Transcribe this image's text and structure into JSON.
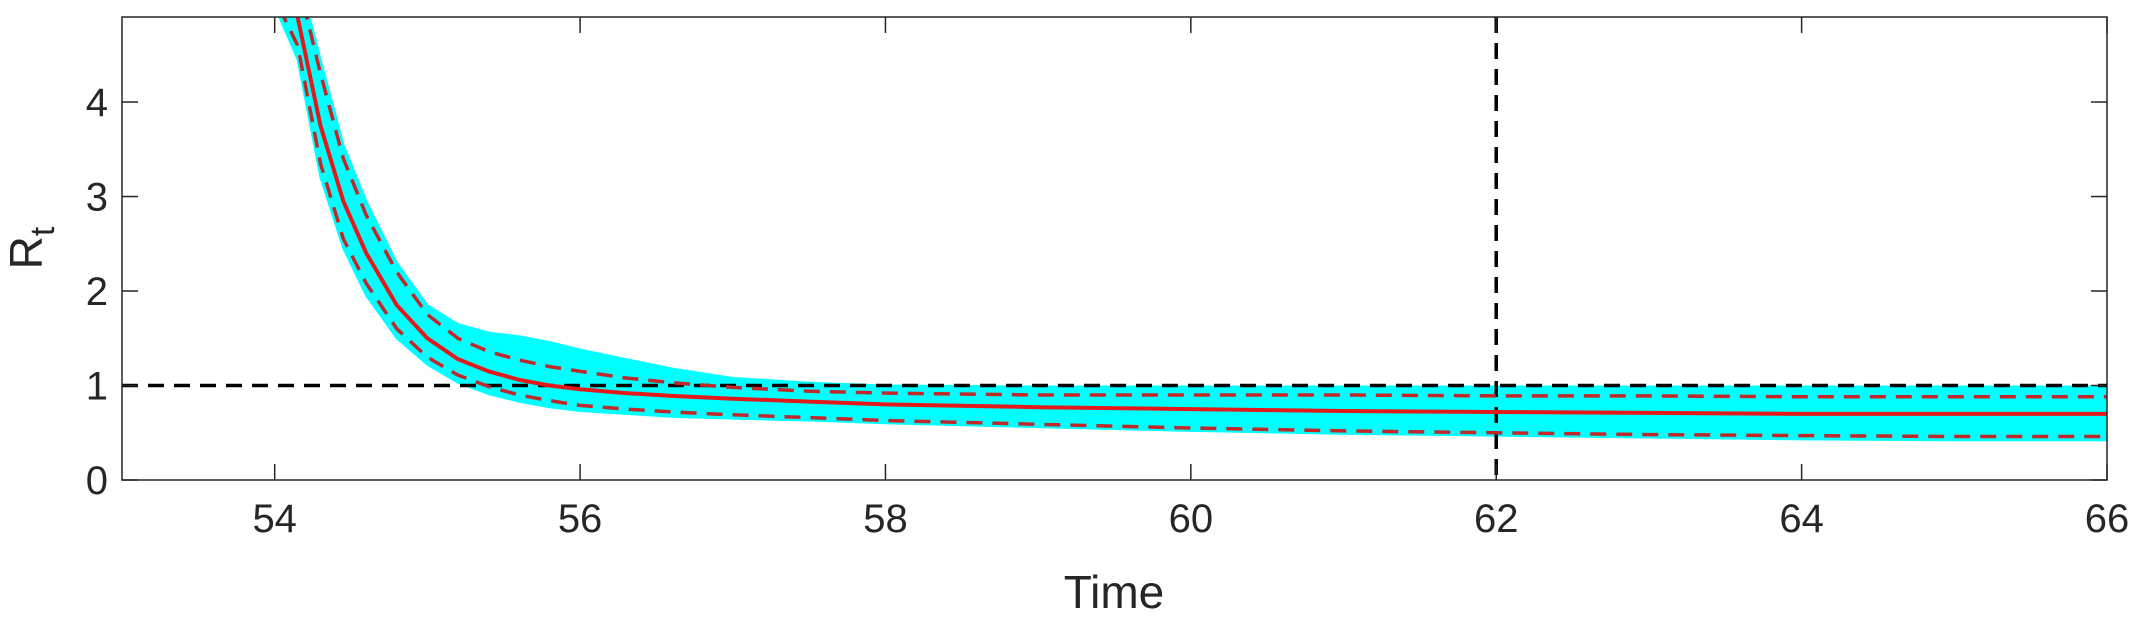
{
  "chart_data": {
    "type": "line",
    "xlabel": "Time",
    "ylabel": "R",
    "ylabel_subscript": "t",
    "xlim": [
      53,
      66
    ],
    "ylim": [
      0,
      4.9
    ],
    "xticks": [
      54,
      56,
      58,
      60,
      62,
      64,
      66
    ],
    "yticks": [
      0,
      1,
      2,
      3,
      4
    ],
    "grid": false,
    "colors": {
      "band": "#00ffff",
      "median": "#e31a1c",
      "bounds": "#c0282a",
      "reference": "#000000"
    },
    "reference_lines": {
      "y": 1,
      "x": 62
    },
    "x": [
      54.03,
      54.15,
      54.3,
      54.45,
      54.6,
      54.8,
      55.0,
      55.2,
      55.4,
      55.6,
      55.8,
      56.0,
      56.3,
      56.6,
      57.0,
      57.5,
      58.0,
      59.0,
      60.0,
      61.0,
      62.0,
      63.0,
      64.0,
      65.0,
      66.0
    ],
    "series": [
      {
        "role": "median",
        "values": [
          5.2,
          4.9,
          3.75,
          2.95,
          2.4,
          1.85,
          1.5,
          1.28,
          1.15,
          1.06,
          1.0,
          0.96,
          0.92,
          0.89,
          0.86,
          0.83,
          0.8,
          0.77,
          0.75,
          0.73,
          0.72,
          0.71,
          0.7,
          0.7,
          0.7
        ]
      },
      {
        "role": "upper-bound",
        "values": [
          5.5,
          5.3,
          4.3,
          3.4,
          2.8,
          2.2,
          1.75,
          1.5,
          1.36,
          1.27,
          1.2,
          1.15,
          1.08,
          1.03,
          0.98,
          0.94,
          0.92,
          0.9,
          0.9,
          0.9,
          0.89,
          0.89,
          0.88,
          0.88,
          0.88
        ]
      },
      {
        "role": "lower-bound",
        "values": [
          5.0,
          4.6,
          3.35,
          2.55,
          2.08,
          1.6,
          1.3,
          1.11,
          0.99,
          0.9,
          0.84,
          0.79,
          0.75,
          0.72,
          0.69,
          0.66,
          0.63,
          0.59,
          0.55,
          0.52,
          0.5,
          0.48,
          0.47,
          0.46,
          0.46
        ]
      },
      {
        "role": "band-upper",
        "values": [
          5.6,
          5.4,
          4.45,
          3.55,
          2.95,
          2.3,
          1.85,
          1.65,
          1.56,
          1.52,
          1.46,
          1.38,
          1.28,
          1.18,
          1.08,
          1.03,
          1.0,
          0.99,
          0.99,
          0.99,
          0.99,
          0.99,
          0.99,
          0.99,
          0.99
        ]
      },
      {
        "role": "band-lower",
        "values": [
          4.9,
          4.45,
          3.2,
          2.45,
          1.95,
          1.5,
          1.22,
          1.03,
          0.91,
          0.83,
          0.77,
          0.73,
          0.7,
          0.67,
          0.65,
          0.63,
          0.6,
          0.56,
          0.52,
          0.49,
          0.47,
          0.45,
          0.43,
          0.42,
          0.42
        ]
      }
    ]
  }
}
